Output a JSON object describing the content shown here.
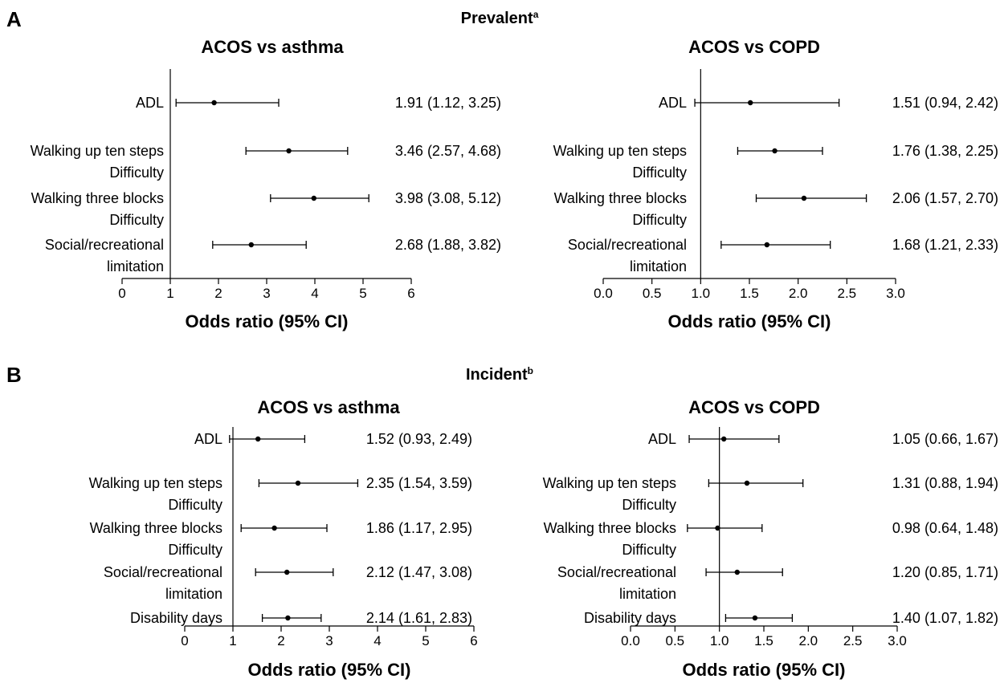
{
  "figure": {
    "panels": [
      {
        "letter": "A",
        "title": "Prevalent",
        "sup": "a"
      },
      {
        "letter": "B",
        "title": "Incident",
        "sup": "b"
      }
    ]
  },
  "chart_data": [
    {
      "type": "forest",
      "panel": "A",
      "title": "ACOS vs asthma",
      "xlabel": "Odds ratio (95% CI)",
      "xlim": [
        0,
        6
      ],
      "ticks": [
        "0",
        "1",
        "2",
        "3",
        "4",
        "5",
        "6"
      ],
      "reference_line": 1,
      "rows": [
        {
          "label": [
            "ADL"
          ],
          "or": 1.91,
          "lo": 1.12,
          "hi": 3.25,
          "text": "1.91 (1.12, 3.25)"
        },
        {
          "label": [
            "Walking up ten steps",
            "Difficulty"
          ],
          "or": 3.46,
          "lo": 2.57,
          "hi": 4.68,
          "text": "3.46 (2.57, 4.68)"
        },
        {
          "label": [
            "Walking three blocks",
            "Difficulty"
          ],
          "or": 3.98,
          "lo": 3.08,
          "hi": 5.12,
          "text": "3.98 (3.08, 5.12)"
        },
        {
          "label": [
            "Social/recreational",
            "limitation"
          ],
          "or": 2.68,
          "lo": 1.88,
          "hi": 3.82,
          "text": "2.68 (1.88, 3.82)"
        }
      ]
    },
    {
      "type": "forest",
      "panel": "A",
      "title": "ACOS vs COPD",
      "xlabel": "Odds ratio (95% CI)",
      "xlim": [
        0,
        3
      ],
      "ticks": [
        "0.0",
        "0.5",
        "1.0",
        "1.5",
        "2.0",
        "2.5",
        "3.0"
      ],
      "reference_line": 1,
      "rows": [
        {
          "label": [
            "ADL"
          ],
          "or": 1.51,
          "lo": 0.94,
          "hi": 2.42,
          "text": "1.51 (0.94, 2.42)"
        },
        {
          "label": [
            "Walking up ten steps",
            "Difficulty"
          ],
          "or": 1.76,
          "lo": 1.38,
          "hi": 2.25,
          "text": "1.76 (1.38, 2.25)"
        },
        {
          "label": [
            "Walking three blocks",
            "Difficulty"
          ],
          "or": 2.06,
          "lo": 1.57,
          "hi": 2.7,
          "text": "2.06 (1.57, 2.70)"
        },
        {
          "label": [
            "Social/recreational",
            "limitation"
          ],
          "or": 1.68,
          "lo": 1.21,
          "hi": 2.33,
          "text": "1.68 (1.21, 2.33)"
        }
      ]
    },
    {
      "type": "forest",
      "panel": "B",
      "title": "ACOS vs asthma",
      "xlabel": "Odds ratio (95% CI)",
      "xlim": [
        0,
        6
      ],
      "ticks": [
        "0",
        "1",
        "2",
        "3",
        "4",
        "5",
        "6"
      ],
      "reference_line": 1,
      "rows": [
        {
          "label": [
            "ADL"
          ],
          "or": 1.52,
          "lo": 0.93,
          "hi": 2.49,
          "text": "1.52 (0.93, 2.49)"
        },
        {
          "label": [
            "Walking up ten steps",
            "Difficulty"
          ],
          "or": 2.35,
          "lo": 1.54,
          "hi": 3.59,
          "text": "2.35 (1.54, 3.59)"
        },
        {
          "label": [
            "Walking three blocks",
            "Difficulty"
          ],
          "or": 1.86,
          "lo": 1.17,
          "hi": 2.95,
          "text": "1.86 (1.17, 2.95)"
        },
        {
          "label": [
            "Social/recreational",
            "limitation"
          ],
          "or": 2.12,
          "lo": 1.47,
          "hi": 3.08,
          "text": "2.12 (1.47, 3.08)"
        },
        {
          "label": [
            "Disability days"
          ],
          "or": 2.14,
          "lo": 1.61,
          "hi": 2.83,
          "text": "2.14 (1.61, 2.83)"
        }
      ]
    },
    {
      "type": "forest",
      "panel": "B",
      "title": "ACOS vs COPD",
      "xlabel": "Odds ratio (95% CI)",
      "xlim": [
        0,
        3
      ],
      "ticks": [
        "0.0",
        "0.5",
        "1.0",
        "1.5",
        "2.0",
        "2.5",
        "3.0"
      ],
      "reference_line": 1,
      "rows": [
        {
          "label": [
            "ADL"
          ],
          "or": 1.05,
          "lo": 0.66,
          "hi": 1.67,
          "text": "1.05 (0.66, 1.67)"
        },
        {
          "label": [
            "Walking up ten steps",
            "Difficulty"
          ],
          "or": 1.31,
          "lo": 0.88,
          "hi": 1.94,
          "text": "1.31 (0.88, 1.94)"
        },
        {
          "label": [
            "Walking three blocks",
            "Difficulty"
          ],
          "or": 0.98,
          "lo": 0.64,
          "hi": 1.48,
          "text": "0.98 (0.64, 1.48)"
        },
        {
          "label": [
            "Social/recreational",
            "limitation"
          ],
          "or": 1.2,
          "lo": 0.85,
          "hi": 1.71,
          "text": "1.20 (0.85, 1.71)"
        },
        {
          "label": [
            "Disability days"
          ],
          "or": 1.4,
          "lo": 1.07,
          "hi": 1.82,
          "text": "1.40 (1.07, 1.82)"
        }
      ]
    }
  ]
}
